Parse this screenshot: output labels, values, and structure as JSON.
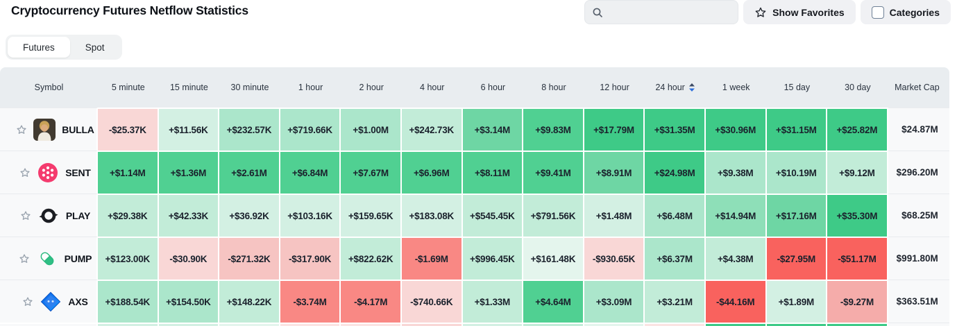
{
  "page": {
    "title": "Cryptocurrency Futures Netflow Statistics"
  },
  "toolbar": {
    "search_placeholder": "",
    "show_favorites": "Show Favorites",
    "categories": "Categories"
  },
  "tabs": [
    {
      "label": "Futures",
      "active": true
    },
    {
      "label": "Spot",
      "active": false
    }
  ],
  "palette": {
    "g1": "#e4f5ed",
    "g2": "#d3f0e3",
    "g3": "#c2ecd8",
    "g4": "#abe6cb",
    "g5": "#8edfb8",
    "g6": "#6ed6a4",
    "g7": "#50d092",
    "g8": "#3eca87",
    "r1": "#fbe4e3",
    "r2": "#f9d7d6",
    "r3": "#f6c4c2",
    "r4": "#f5acaa",
    "r5": "#f98884",
    "r6": "#f9625e",
    "neutral": "#f8f9fa",
    "sort_up": "#3a4963",
    "sort_down": "#2e6fdb",
    "header_bg": "#e9edf0"
  },
  "table": {
    "columns": [
      "Symbol",
      "5 minute",
      "15 minute",
      "30 minute",
      "1 hour",
      "2 hour",
      "4 hour",
      "6 hour",
      "8 hour",
      "12 hour",
      "24 hour",
      "1 week",
      "15 day",
      "30 day",
      "Market Cap"
    ],
    "sort_column": "24 hour",
    "rows": [
      {
        "symbol": "BULLA",
        "icon": "bulla-avatar-icon",
        "market_cap": "$24.87M",
        "values": [
          "-$25.37K",
          "+$11.56K",
          "+$232.57K",
          "+$719.66K",
          "+$1.00M",
          "+$242.73K",
          "+$3.14M",
          "+$9.83M",
          "+$17.79M",
          "+$31.35M",
          "+$30.96M",
          "+$31.15M",
          "+$25.82M"
        ],
        "shades": [
          "r2",
          "g2",
          "g4",
          "g4",
          "g4",
          "g3",
          "g6",
          "g7",
          "g8",
          "g8",
          "g8",
          "g8",
          "g8"
        ]
      },
      {
        "symbol": "SENT",
        "icon": "sent-logo-icon",
        "market_cap": "$296.20M",
        "values": [
          "+$1.14M",
          "+$1.36M",
          "+$2.61M",
          "+$6.84M",
          "+$7.67M",
          "+$6.96M",
          "+$8.11M",
          "+$9.41M",
          "+$8.91M",
          "+$24.98M",
          "+$9.38M",
          "+$10.19M",
          "+$9.12M"
        ],
        "shades": [
          "g7",
          "g7",
          "g7",
          "g7",
          "g7",
          "g7",
          "g7",
          "g7",
          "g6",
          "g8",
          "g4",
          "g4",
          "g3"
        ]
      },
      {
        "symbol": "PLAY",
        "icon": "play-logo-icon",
        "market_cap": "$68.25M",
        "values": [
          "+$29.38K",
          "+$42.33K",
          "+$36.92K",
          "+$103.16K",
          "+$159.65K",
          "+$183.08K",
          "+$545.45K",
          "+$791.56K",
          "+$1.48M",
          "+$6.48M",
          "+$14.94M",
          "+$17.16M",
          "+$35.30M"
        ],
        "shades": [
          "g3",
          "g3",
          "g2",
          "g2",
          "g2",
          "g2",
          "g3",
          "g3",
          "g2",
          "g4",
          "g5",
          "g6",
          "g8"
        ]
      },
      {
        "symbol": "PUMP",
        "icon": "pump-pill-icon",
        "market_cap": "$991.80M",
        "values": [
          "+$123.00K",
          "-$30.90K",
          "-$271.32K",
          "-$317.90K",
          "+$822.62K",
          "-$1.69M",
          "+$996.45K",
          "+$161.48K",
          "-$930.65K",
          "+$6.37M",
          "+$4.38M",
          "-$27.95M",
          "-$51.17M"
        ],
        "shades": [
          "g3",
          "r2",
          "r3",
          "r3",
          "g3",
          "r5",
          "g3",
          "g1",
          "r2",
          "g4",
          "g3",
          "r6",
          "r6"
        ]
      },
      {
        "symbol": "AXS",
        "icon": "axs-diamond-icon",
        "market_cap": "$363.51M",
        "values": [
          "+$188.54K",
          "+$154.50K",
          "+$148.22K",
          "-$3.74M",
          "-$4.17M",
          "-$740.66K",
          "+$1.33M",
          "+$4.64M",
          "+$3.09M",
          "+$3.21M",
          "-$44.16M",
          "+$1.89M",
          "-$9.27M"
        ],
        "shades": [
          "g4",
          "g4",
          "g3",
          "r5",
          "r5",
          "r2",
          "g3",
          "g7",
          "g4",
          "g3",
          "r6",
          "g2",
          "r4"
        ]
      }
    ],
    "partial_row_shades": [
      "g2",
      "g2",
      "g1",
      "r1",
      "r1",
      "r2",
      "g2",
      "g3",
      "g1",
      "r1",
      "g8",
      "g8",
      "g8"
    ]
  }
}
